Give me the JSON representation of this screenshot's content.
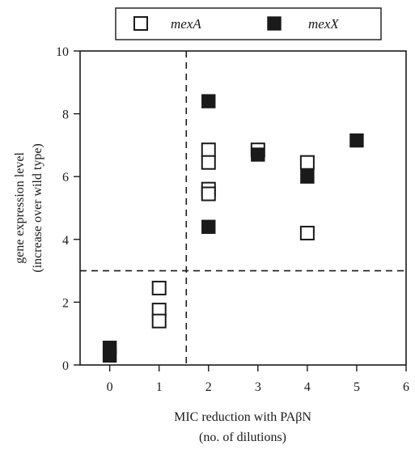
{
  "chart_data": {
    "type": "scatter",
    "xlabel": [
      "MIC reduction with PAβN",
      "(no. of dilutions)"
    ],
    "ylabel": [
      "gene expression level",
      "(increase over wild type)"
    ],
    "xlim": [
      -0.6,
      6
    ],
    "ylim": [
      0,
      10
    ],
    "xticks": [
      0,
      1,
      2,
      3,
      4,
      5,
      6
    ],
    "yticks": [
      0,
      2,
      4,
      6,
      8,
      10
    ],
    "grid": false,
    "legend_position": "top-center, outside plot",
    "threshold_lines": {
      "vertical_x": 1.55,
      "horizontal_y": 3.0
    },
    "series": [
      {
        "name": "mexA",
        "marker": "open-square",
        "color": "#1a1a1a",
        "points": [
          [
            1,
            2.45
          ],
          [
            1,
            1.75
          ],
          [
            1,
            1.4
          ],
          [
            2,
            6.85
          ],
          [
            2,
            6.45
          ],
          [
            2,
            5.6
          ],
          [
            2,
            5.45
          ],
          [
            3,
            6.85
          ],
          [
            4,
            6.45
          ],
          [
            4,
            4.2
          ]
        ]
      },
      {
        "name": "mexX",
        "marker": "filled-square",
        "color": "#1a1a1a",
        "points": [
          [
            0,
            0.55
          ],
          [
            0,
            0.3
          ],
          [
            2,
            8.4
          ],
          [
            2,
            4.4
          ],
          [
            3,
            6.7
          ],
          [
            4,
            6.0
          ],
          [
            5,
            7.15
          ]
        ]
      }
    ]
  }
}
